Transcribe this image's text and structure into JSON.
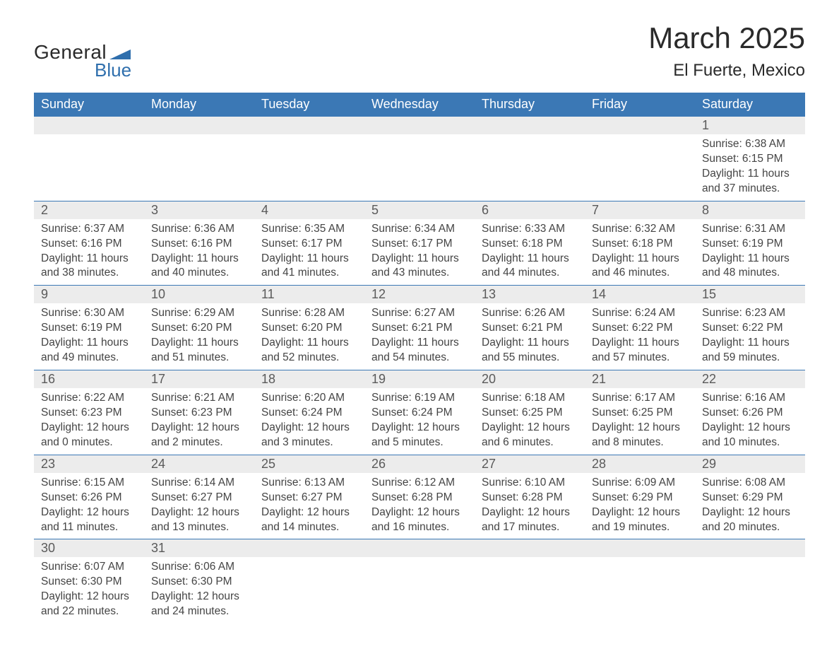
{
  "logo": {
    "text_general": "General",
    "text_blue": "Blue",
    "flag_color": "#2f6fad"
  },
  "header": {
    "month_title": "March 2025",
    "location": "El Fuerte, Mexico"
  },
  "colors": {
    "header_bg": "#3b78b5",
    "header_text": "#ffffff",
    "daynum_bg": "#ececec",
    "body_text": "#444444",
    "border": "#3b78b5"
  },
  "day_headers": [
    "Sunday",
    "Monday",
    "Tuesday",
    "Wednesday",
    "Thursday",
    "Friday",
    "Saturday"
  ],
  "weeks": [
    [
      null,
      null,
      null,
      null,
      null,
      null,
      {
        "n": "1",
        "sr": "Sunrise: 6:38 AM",
        "ss": "Sunset: 6:15 PM",
        "d1": "Daylight: 11 hours",
        "d2": "and 37 minutes."
      }
    ],
    [
      {
        "n": "2",
        "sr": "Sunrise: 6:37 AM",
        "ss": "Sunset: 6:16 PM",
        "d1": "Daylight: 11 hours",
        "d2": "and 38 minutes."
      },
      {
        "n": "3",
        "sr": "Sunrise: 6:36 AM",
        "ss": "Sunset: 6:16 PM",
        "d1": "Daylight: 11 hours",
        "d2": "and 40 minutes."
      },
      {
        "n": "4",
        "sr": "Sunrise: 6:35 AM",
        "ss": "Sunset: 6:17 PM",
        "d1": "Daylight: 11 hours",
        "d2": "and 41 minutes."
      },
      {
        "n": "5",
        "sr": "Sunrise: 6:34 AM",
        "ss": "Sunset: 6:17 PM",
        "d1": "Daylight: 11 hours",
        "d2": "and 43 minutes."
      },
      {
        "n": "6",
        "sr": "Sunrise: 6:33 AM",
        "ss": "Sunset: 6:18 PM",
        "d1": "Daylight: 11 hours",
        "d2": "and 44 minutes."
      },
      {
        "n": "7",
        "sr": "Sunrise: 6:32 AM",
        "ss": "Sunset: 6:18 PM",
        "d1": "Daylight: 11 hours",
        "d2": "and 46 minutes."
      },
      {
        "n": "8",
        "sr": "Sunrise: 6:31 AM",
        "ss": "Sunset: 6:19 PM",
        "d1": "Daylight: 11 hours",
        "d2": "and 48 minutes."
      }
    ],
    [
      {
        "n": "9",
        "sr": "Sunrise: 6:30 AM",
        "ss": "Sunset: 6:19 PM",
        "d1": "Daylight: 11 hours",
        "d2": "and 49 minutes."
      },
      {
        "n": "10",
        "sr": "Sunrise: 6:29 AM",
        "ss": "Sunset: 6:20 PM",
        "d1": "Daylight: 11 hours",
        "d2": "and 51 minutes."
      },
      {
        "n": "11",
        "sr": "Sunrise: 6:28 AM",
        "ss": "Sunset: 6:20 PM",
        "d1": "Daylight: 11 hours",
        "d2": "and 52 minutes."
      },
      {
        "n": "12",
        "sr": "Sunrise: 6:27 AM",
        "ss": "Sunset: 6:21 PM",
        "d1": "Daylight: 11 hours",
        "d2": "and 54 minutes."
      },
      {
        "n": "13",
        "sr": "Sunrise: 6:26 AM",
        "ss": "Sunset: 6:21 PM",
        "d1": "Daylight: 11 hours",
        "d2": "and 55 minutes."
      },
      {
        "n": "14",
        "sr": "Sunrise: 6:24 AM",
        "ss": "Sunset: 6:22 PM",
        "d1": "Daylight: 11 hours",
        "d2": "and 57 minutes."
      },
      {
        "n": "15",
        "sr": "Sunrise: 6:23 AM",
        "ss": "Sunset: 6:22 PM",
        "d1": "Daylight: 11 hours",
        "d2": "and 59 minutes."
      }
    ],
    [
      {
        "n": "16",
        "sr": "Sunrise: 6:22 AM",
        "ss": "Sunset: 6:23 PM",
        "d1": "Daylight: 12 hours",
        "d2": "and 0 minutes."
      },
      {
        "n": "17",
        "sr": "Sunrise: 6:21 AM",
        "ss": "Sunset: 6:23 PM",
        "d1": "Daylight: 12 hours",
        "d2": "and 2 minutes."
      },
      {
        "n": "18",
        "sr": "Sunrise: 6:20 AM",
        "ss": "Sunset: 6:24 PM",
        "d1": "Daylight: 12 hours",
        "d2": "and 3 minutes."
      },
      {
        "n": "19",
        "sr": "Sunrise: 6:19 AM",
        "ss": "Sunset: 6:24 PM",
        "d1": "Daylight: 12 hours",
        "d2": "and 5 minutes."
      },
      {
        "n": "20",
        "sr": "Sunrise: 6:18 AM",
        "ss": "Sunset: 6:25 PM",
        "d1": "Daylight: 12 hours",
        "d2": "and 6 minutes."
      },
      {
        "n": "21",
        "sr": "Sunrise: 6:17 AM",
        "ss": "Sunset: 6:25 PM",
        "d1": "Daylight: 12 hours",
        "d2": "and 8 minutes."
      },
      {
        "n": "22",
        "sr": "Sunrise: 6:16 AM",
        "ss": "Sunset: 6:26 PM",
        "d1": "Daylight: 12 hours",
        "d2": "and 10 minutes."
      }
    ],
    [
      {
        "n": "23",
        "sr": "Sunrise: 6:15 AM",
        "ss": "Sunset: 6:26 PM",
        "d1": "Daylight: 12 hours",
        "d2": "and 11 minutes."
      },
      {
        "n": "24",
        "sr": "Sunrise: 6:14 AM",
        "ss": "Sunset: 6:27 PM",
        "d1": "Daylight: 12 hours",
        "d2": "and 13 minutes."
      },
      {
        "n": "25",
        "sr": "Sunrise: 6:13 AM",
        "ss": "Sunset: 6:27 PM",
        "d1": "Daylight: 12 hours",
        "d2": "and 14 minutes."
      },
      {
        "n": "26",
        "sr": "Sunrise: 6:12 AM",
        "ss": "Sunset: 6:28 PM",
        "d1": "Daylight: 12 hours",
        "d2": "and 16 minutes."
      },
      {
        "n": "27",
        "sr": "Sunrise: 6:10 AM",
        "ss": "Sunset: 6:28 PM",
        "d1": "Daylight: 12 hours",
        "d2": "and 17 minutes."
      },
      {
        "n": "28",
        "sr": "Sunrise: 6:09 AM",
        "ss": "Sunset: 6:29 PM",
        "d1": "Daylight: 12 hours",
        "d2": "and 19 minutes."
      },
      {
        "n": "29",
        "sr": "Sunrise: 6:08 AM",
        "ss": "Sunset: 6:29 PM",
        "d1": "Daylight: 12 hours",
        "d2": "and 20 minutes."
      }
    ],
    [
      {
        "n": "30",
        "sr": "Sunrise: 6:07 AM",
        "ss": "Sunset: 6:30 PM",
        "d1": "Daylight: 12 hours",
        "d2": "and 22 minutes."
      },
      {
        "n": "31",
        "sr": "Sunrise: 6:06 AM",
        "ss": "Sunset: 6:30 PM",
        "d1": "Daylight: 12 hours",
        "d2": "and 24 minutes."
      },
      null,
      null,
      null,
      null,
      null
    ]
  ]
}
